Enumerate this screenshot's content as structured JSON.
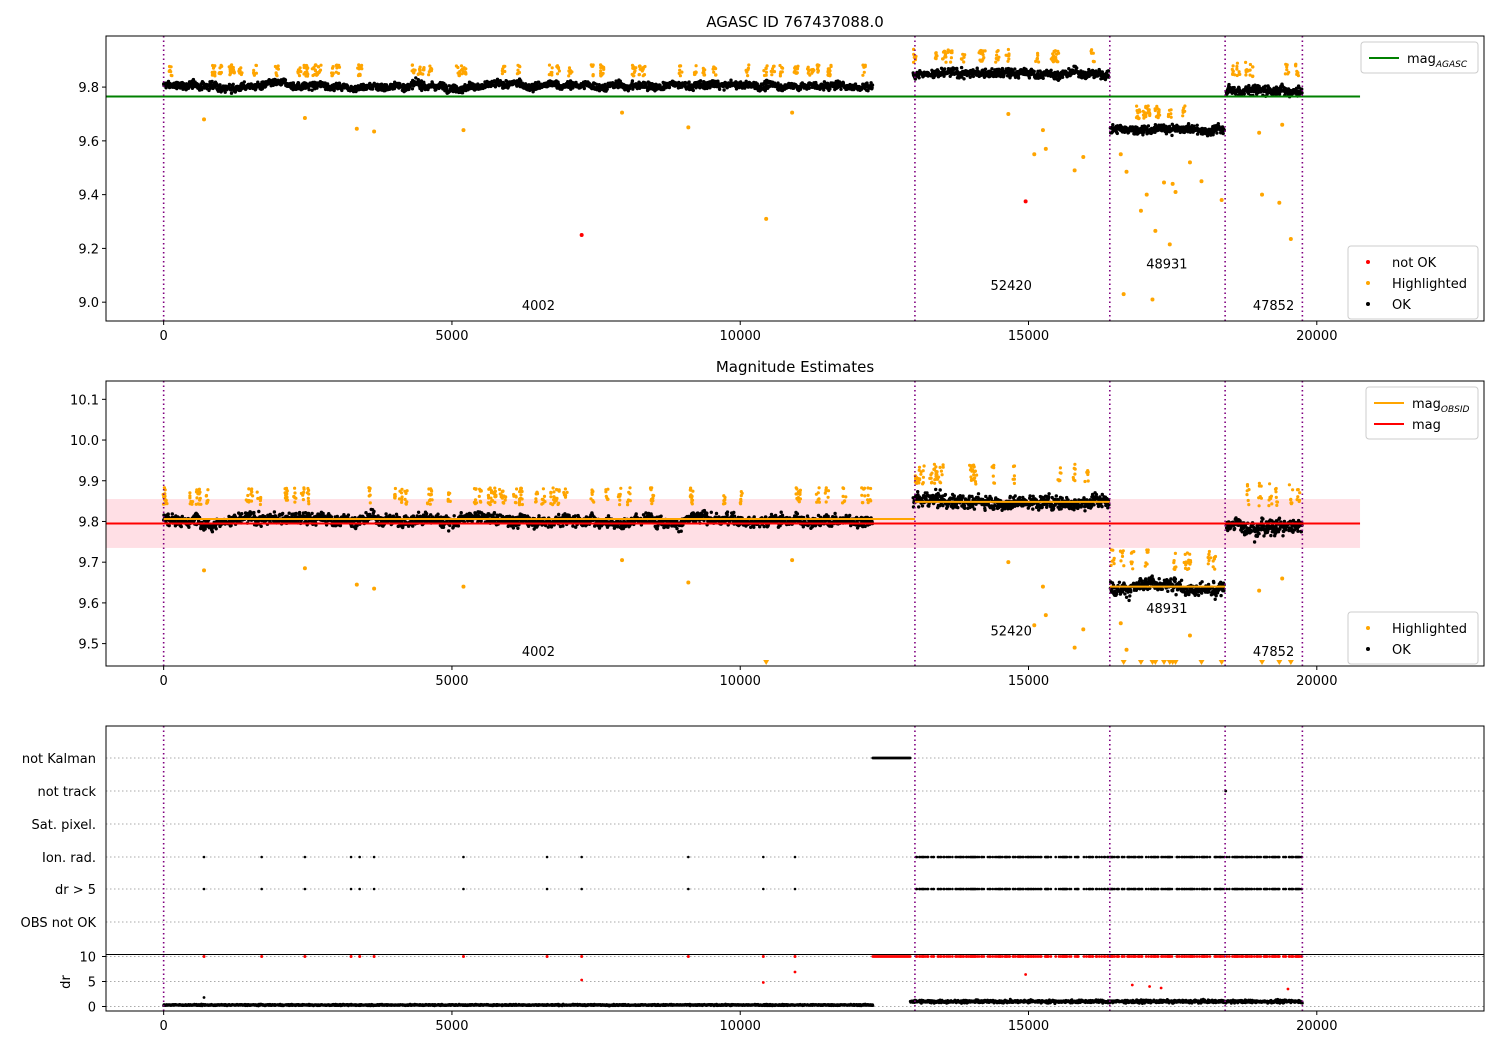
{
  "chart_data": [
    {
      "type": "scatter",
      "title": "AGASC ID 767437088.0",
      "xlim": [
        -1000,
        22900
      ],
      "ylim": [
        8.93,
        9.99
      ],
      "x_ticks": [
        0,
        5000,
        10000,
        15000,
        20000
      ],
      "y_ticks": [
        9.0,
        9.2,
        9.4,
        9.6,
        9.8
      ],
      "grid": false,
      "legend_position": "top-right",
      "legend_entries": [
        {
          "label": "mag",
          "subscript": "AGASC",
          "color": "#008000",
          "marker": "line"
        }
      ],
      "legend2_position": "lower-right",
      "legend2_entries": [
        {
          "label": "not OK",
          "color": "#ff0000",
          "marker": "point"
        },
        {
          "label": "Highlighted",
          "color": "#ffa500",
          "marker": "point"
        },
        {
          "label": "OK",
          "color": "#000000",
          "marker": "point"
        }
      ],
      "reference_line": {
        "name": "mag_AGASC",
        "value": 9.765,
        "x_range": [
          -1000,
          20750
        ],
        "color": "#008000"
      },
      "obsid_boundaries": [
        0,
        13030,
        16410,
        18410,
        19750
      ],
      "obsid_labels": [
        {
          "text": "4002",
          "x": 6500,
          "y": 8.97
        },
        {
          "text": "52420",
          "x": 14700,
          "y": 9.045
        },
        {
          "text": "48931",
          "x": 17400,
          "y": 9.125
        },
        {
          "text": "47852",
          "x": 19250,
          "y": 8.97
        }
      ],
      "segments": [
        {
          "obsid": "4002",
          "x": [
            0,
            12300
          ],
          "mean": 9.805,
          "spread": 0.03
        },
        {
          "obsid": "52420",
          "x": [
            13000,
            16400
          ],
          "mean": 9.85,
          "spread": 0.035
        },
        {
          "obsid": "48931",
          "x": [
            16420,
            18400
          ],
          "mean": 9.64,
          "spread": 0.035
        },
        {
          "obsid": "47852",
          "x": [
            18430,
            19750
          ],
          "mean": 9.79,
          "spread": 0.04
        }
      ],
      "highlighted_points": [
        {
          "x": 700,
          "y": 9.68
        },
        {
          "x": 2450,
          "y": 9.685
        },
        {
          "x": 3350,
          "y": 9.645
        },
        {
          "x": 3650,
          "y": 9.635
        },
        {
          "x": 5200,
          "y": 9.64
        },
        {
          "x": 7950,
          "y": 9.705
        },
        {
          "x": 9100,
          "y": 9.65
        },
        {
          "x": 10450,
          "y": 9.31
        },
        {
          "x": 10900,
          "y": 9.705
        },
        {
          "x": 14650,
          "y": 9.7
        },
        {
          "x": 15100,
          "y": 9.55
        },
        {
          "x": 15250,
          "y": 9.64
        },
        {
          "x": 15300,
          "y": 9.57
        },
        {
          "x": 15800,
          "y": 9.49
        },
        {
          "x": 15950,
          "y": 9.54
        },
        {
          "x": 16600,
          "y": 9.55
        },
        {
          "x": 16650,
          "y": 9.03
        },
        {
          "x": 16700,
          "y": 9.485
        },
        {
          "x": 16950,
          "y": 9.34
        },
        {
          "x": 17050,
          "y": 9.4
        },
        {
          "x": 17150,
          "y": 9.01
        },
        {
          "x": 17200,
          "y": 9.265
        },
        {
          "x": 17350,
          "y": 9.445
        },
        {
          "x": 17450,
          "y": 9.215
        },
        {
          "x": 17500,
          "y": 9.44
        },
        {
          "x": 17550,
          "y": 9.41
        },
        {
          "x": 17800,
          "y": 9.52
        },
        {
          "x": 18000,
          "y": 9.45
        },
        {
          "x": 18350,
          "y": 9.38
        },
        {
          "x": 19000,
          "y": 9.63
        },
        {
          "x": 19050,
          "y": 9.4
        },
        {
          "x": 19350,
          "y": 9.37
        },
        {
          "x": 19400,
          "y": 9.66
        },
        {
          "x": 19550,
          "y": 9.235
        }
      ],
      "not_ok_points": [
        {
          "x": 7250,
          "y": 9.25
        },
        {
          "x": 14950,
          "y": 9.375
        }
      ]
    },
    {
      "type": "scatter",
      "title": "Magnitude Estimates",
      "xlim": [
        -1000,
        22900
      ],
      "ylim": [
        9.445,
        10.145
      ],
      "x_ticks": [
        0,
        5000,
        10000,
        15000,
        20000
      ],
      "y_ticks": [
        9.5,
        9.6,
        9.7,
        9.8,
        9.9,
        10.0,
        10.1
      ],
      "grid": false,
      "legend_position": "top-right",
      "legend_entries": [
        {
          "label": "mag",
          "subscript": "OBSID",
          "color": "#ffa500",
          "marker": "line"
        },
        {
          "label": "mag",
          "subscript": "",
          "color": "#ff0000",
          "marker": "line"
        }
      ],
      "legend2_position": "lower-right",
      "legend2_entries": [
        {
          "label": "Highlighted",
          "color": "#ffa500",
          "marker": "point"
        },
        {
          "label": "OK",
          "color": "#000000",
          "marker": "point"
        }
      ],
      "mean_line": {
        "name": "mag",
        "value": 9.795,
        "x_range": [
          -1000,
          20750
        ],
        "color": "#ff0000"
      },
      "mean_band": {
        "lower": 9.735,
        "upper": 9.855,
        "x_range": [
          -1000,
          20750
        ],
        "color": "#ffc0cb"
      },
      "obsid_means": [
        {
          "obsid": "4002",
          "x_range": [
            0,
            13030
          ],
          "value": 9.806
        },
        {
          "obsid": "52420",
          "x_range": [
            13030,
            16410
          ],
          "value": 9.848
        },
        {
          "obsid": "48931",
          "x_range": [
            16410,
            18410
          ],
          "value": 9.64
        },
        {
          "obsid": "47852",
          "x_range": [
            18410,
            19750
          ],
          "value": 9.795
        }
      ],
      "obsid_boundaries": [
        0,
        13030,
        16410,
        18410,
        19750
      ],
      "obsid_labels": [
        {
          "text": "4002",
          "x": 6500,
          "y": 9.47
        },
        {
          "text": "52420",
          "x": 14700,
          "y": 9.52
        },
        {
          "text": "48931",
          "x": 17400,
          "y": 9.575
        },
        {
          "text": "47852",
          "x": 19250,
          "y": 9.47
        }
      ],
      "segments": [
        {
          "obsid": "4002",
          "x": [
            0,
            12300
          ],
          "mean": 9.805,
          "spread": 0.03
        },
        {
          "obsid": "52420",
          "x": [
            13000,
            16400
          ],
          "mean": 9.85,
          "spread": 0.035
        },
        {
          "obsid": "48931",
          "x": [
            16420,
            18400
          ],
          "mean": 9.64,
          "spread": 0.035
        },
        {
          "obsid": "47852",
          "x": [
            18430,
            19750
          ],
          "mean": 9.79,
          "spread": 0.04
        }
      ],
      "highlighted_points": [
        {
          "x": 700,
          "y": 9.68
        },
        {
          "x": 2450,
          "y": 9.685
        },
        {
          "x": 3350,
          "y": 9.645
        },
        {
          "x": 3650,
          "y": 9.635
        },
        {
          "x": 5200,
          "y": 9.64
        },
        {
          "x": 7950,
          "y": 9.705
        },
        {
          "x": 9100,
          "y": 9.65
        },
        {
          "x": 10900,
          "y": 9.705
        },
        {
          "x": 14650,
          "y": 9.7
        },
        {
          "x": 15100,
          "y": 9.545
        },
        {
          "x": 15250,
          "y": 9.64
        },
        {
          "x": 15300,
          "y": 9.57
        },
        {
          "x": 15800,
          "y": 9.49
        },
        {
          "x": 15950,
          "y": 9.535
        },
        {
          "x": 16600,
          "y": 9.55
        },
        {
          "x": 16700,
          "y": 9.485
        },
        {
          "x": 17800,
          "y": 9.52
        },
        {
          "x": 19000,
          "y": 9.63
        },
        {
          "x": 19400,
          "y": 9.66
        }
      ],
      "clipped_low_points": [
        10450,
        16650,
        16950,
        17150,
        17200,
        17350,
        17450,
        17500,
        17550,
        18000,
        18350,
        19050,
        19350,
        19550
      ]
    },
    {
      "type": "scatter",
      "title": "",
      "xlim": [
        -1000,
        22900
      ],
      "x_ticks": [
        0,
        5000,
        10000,
        15000,
        20000
      ],
      "flag_rows": [
        "not Kalman",
        "not track",
        "Sat. pixel.",
        "Ion. rad.",
        "dr > 5",
        "OBS not OK"
      ],
      "ylabel": "dr",
      "ylim": [
        -0.5,
        10.5
      ],
      "y_ticks": [
        0,
        5,
        10
      ],
      "grid": "horizontal dotted",
      "obsid_boundaries": [
        0,
        13030,
        16410,
        18410,
        19750
      ],
      "not_kalman_range": [
        12300,
        12950
      ],
      "not_track_points": [
        18420
      ],
      "ion_rad_points": [
        700,
        1700,
        2450,
        3250,
        3400,
        3650,
        5200,
        6650,
        7250,
        9100,
        10400,
        10950
      ],
      "ion_rad_dense_range": [
        13050,
        19750
      ],
      "dr_outliers": [
        {
          "x": 7250,
          "y": 5.3
        },
        {
          "x": 10400,
          "y": 4.8
        },
        {
          "x": 10950,
          "y": 6.9
        },
        {
          "x": 14950,
          "y": 6.4
        },
        {
          "x": 16800,
          "y": 4.3
        },
        {
          "x": 17100,
          "y": 4.0
        },
        {
          "x": 17300,
          "y": 3.7
        },
        {
          "x": 19500,
          "y": 3.5
        },
        {
          "x": 700,
          "y": 1.8
        }
      ],
      "dr_segments": [
        {
          "x": [
            0,
            12300
          ],
          "mean": 0.3,
          "spread": 0.25
        },
        {
          "x": [
            12950,
            19750
          ],
          "mean": 1.0,
          "spread": 0.6
        }
      ]
    }
  ]
}
